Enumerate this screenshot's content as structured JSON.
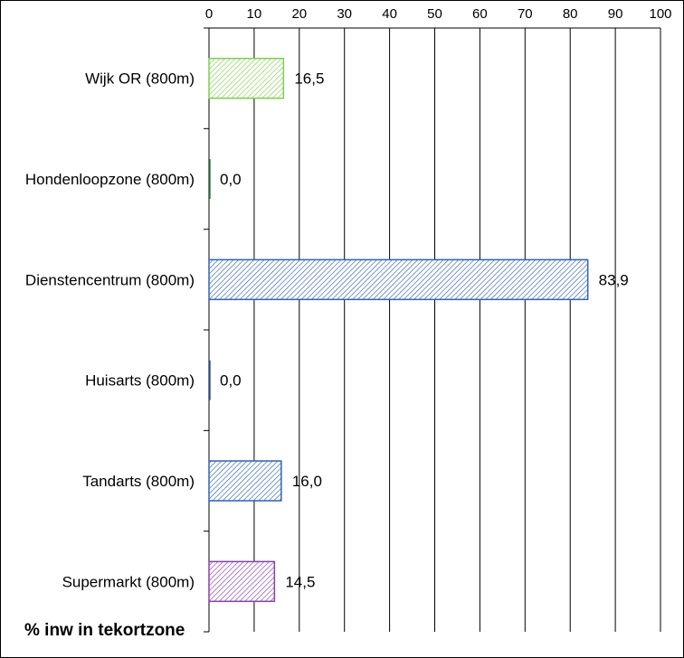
{
  "chart_data": {
    "type": "bar",
    "orientation": "horizontal",
    "title": "",
    "xlabel": "% inw in tekortzone",
    "ylabel": "",
    "xlim": [
      0,
      100
    ],
    "x_ticks": [
      0,
      10,
      20,
      30,
      40,
      50,
      60,
      70,
      80,
      90,
      100
    ],
    "x_axis_position": "top",
    "grid": "vertical",
    "categories": [
      "Wijk OR (800m)",
      "Hondenloopzone (800m)",
      "Dienstencentrum (800m)",
      "Huisarts (800m)",
      "Tandarts (800m)",
      "Supermarkt (800m)"
    ],
    "values": [
      16.5,
      0.0,
      83.9,
      0.0,
      16.0,
      14.5
    ],
    "value_labels": [
      "16,5",
      "0,0",
      "83,9",
      "0,0",
      "16,0",
      "14,5"
    ],
    "bar_colors": [
      "#7dcf4a",
      "#2f8a4a",
      "#2e63b8",
      "#2e63b8",
      "#2e63b8",
      "#8a3fb0"
    ],
    "fill_pattern": "diagonal-hatch"
  }
}
